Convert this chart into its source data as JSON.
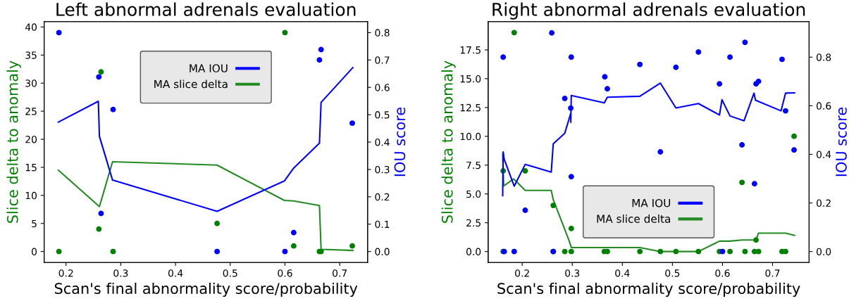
{
  "chart_data": [
    {
      "type": "scatter",
      "title": "Left abnormal adrenals evaluation",
      "xlabel": "Scan's final abnormality score/probability",
      "ylabel": "Slice delta to anomaly",
      "y2label": "IOU score",
      "xlim": [
        0.16,
        0.751
      ],
      "xticks": [
        0.2,
        0.3,
        0.4,
        0.5,
        0.6,
        0.7
      ],
      "ylim": [
        -1.95,
        40.95
      ],
      "yticks": [
        0,
        5,
        10,
        15,
        20,
        25,
        30,
        35,
        40
      ],
      "y2lim": [
        -0.04,
        0.84
      ],
      "y2ticks": [
        {
          "value": 0,
          "label": "0.0"
        },
        0.1,
        0.2,
        0.3,
        0.4,
        0.5,
        0.6,
        0.7,
        0.8
      ],
      "legend": "top",
      "grid": false,
      "series": [
        {
          "marker": "circle",
          "axis": "y2",
          "color": "#0000ff",
          "x": [
            0.187,
            0.26,
            0.264,
            0.286,
            0.476,
            0.6,
            0.616,
            0.663,
            0.666,
            0.723
          ],
          "values": [
            0.8,
            0.638,
            0.139,
            0.519,
            0,
            0,
            0.069,
            0.7,
            0.738,
            0.469
          ]
        },
        {
          "marker": "circle",
          "axis": "y",
          "color": "#008000",
          "x": [
            0.187,
            0.26,
            0.264,
            0.286,
            0.476,
            0.6,
            0.616,
            0.663,
            0.666,
            0.723
          ],
          "values": [
            0,
            4,
            32,
            0,
            5,
            39,
            1,
            0,
            0,
            1
          ]
        },
        {
          "type": "line",
          "name": "MA IOU",
          "axis": "y2",
          "color": "#0000ff",
          "x": [
            0.186,
            0.259,
            0.261,
            0.285,
            0.476,
            0.599,
            0.616,
            0.663,
            0.666,
            0.724
          ],
          "values": [
            0.473,
            0.549,
            0.421,
            0.261,
            0.147,
            0.258,
            0.305,
            0.396,
            0.545,
            0.672
          ]
        },
        {
          "type": "line",
          "name": "MA slice delta",
          "axis": "y",
          "color": "#228b22",
          "x": [
            0.186,
            0.261,
            0.285,
            0.476,
            0.599,
            0.616,
            0.663,
            0.666,
            0.724
          ],
          "values": [
            14.5,
            8.0,
            16.0,
            15.4,
            9.1,
            9.0,
            8.2,
            0.4,
            0.2
          ]
        }
      ]
    },
    {
      "type": "scatter",
      "title": "Right abnormal adrenals evaluation",
      "xlabel": "Scan's final abnormality score/probability",
      "ylabel": "Slice delta to anomaly",
      "y2label": "IOU score",
      "xlim": [
        0.132,
        0.773
      ],
      "xticks": [
        0.2,
        0.3,
        0.4,
        0.5,
        0.6,
        0.7
      ],
      "ylim": [
        -0.95,
        19.95
      ],
      "yticks": [
        {
          "value": 0,
          "label": "0.0"
        },
        2.5,
        {
          "value": 5,
          "label": "5.0"
        },
        7.5,
        {
          "value": 10,
          "label": "10.0"
        },
        12.5,
        {
          "value": 15,
          "label": "15.0"
        },
        17.5
      ],
      "y2lim": [
        -0.045,
        0.946
      ],
      "y2ticks": [
        {
          "value": 0,
          "label": "0.0"
        },
        0.2,
        0.4,
        0.6,
        0.8
      ],
      "legend": "bottom",
      "grid": false,
      "series": [
        {
          "marker": "circle",
          "axis": "y2",
          "color": "#0000ff",
          "x": [
            0.162,
            0.164,
            0.184,
            0.206,
            0.259,
            0.262,
            0.285,
            0.298,
            0.297,
            0.298,
            0.365,
            0.37,
            0.435,
            0.476,
            0.507,
            0.552,
            0.594,
            0.6,
            0.615,
            0.639,
            0.645,
            0.664,
            0.667,
            0.672,
            0.719,
            0.726,
            0.743
          ],
          "values": [
            0.8,
            0,
            0,
            0.17,
            0.9,
            0,
            0.63,
            0.8,
            0.59,
            0.308,
            0.719,
            0.67,
            0.77,
            0.41,
            0.758,
            0.821,
            0.69,
            0,
            0.8,
            0.439,
            0.861,
            0.279,
            0.69,
            0.7,
            0.791,
            0.579,
            0.418
          ]
        },
        {
          "marker": "circle",
          "axis": "y",
          "color": "#008000",
          "x": [
            0.162,
            0.206,
            0.184,
            0.262,
            0.298,
            0.639,
            0.667,
            0.743,
            0.162,
            0.262,
            0.285,
            0.298,
            0.364,
            0.37,
            0.435,
            0.476,
            0.507,
            0.552,
            0.594,
            0.615,
            0.645,
            0.664,
            0.672,
            0.719,
            0.726
          ],
          "values": [
            7,
            7,
            19,
            4,
            2,
            6,
            1,
            10,
            0,
            0,
            0,
            0,
            0,
            0,
            0,
            0,
            0,
            0,
            0,
            0,
            0,
            0,
            0,
            0,
            0
          ]
        },
        {
          "type": "line",
          "name": "MA IOU",
          "axis": "y2",
          "color": "#0000ff",
          "x": [
            0.161,
            0.162,
            0.164,
            0.184,
            0.206,
            0.258,
            0.262,
            0.285,
            0.297,
            0.297,
            0.298,
            0.364,
            0.37,
            0.435,
            0.476,
            0.507,
            0.552,
            0.594,
            0.599,
            0.615,
            0.643,
            0.663,
            0.666,
            0.717,
            0.726,
            0.744
          ],
          "values": [
            0.23,
            0.41,
            0.38,
            0.269,
            0.359,
            0.327,
            0.443,
            0.487,
            0.569,
            0.532,
            0.642,
            0.612,
            0.635,
            0.639,
            0.693,
            0.591,
            0.609,
            0.562,
            0.625,
            0.558,
            0.538,
            0.652,
            0.623,
            0.579,
            0.652,
            0.653
          ]
        },
        {
          "type": "line",
          "name": "MA slice delta",
          "axis": "y",
          "color": "#228b22",
          "x": [
            0.161,
            0.163,
            0.183,
            0.206,
            0.258,
            0.262,
            0.294,
            0.298,
            0.435,
            0.476,
            0.552,
            0.594,
            0.615,
            0.639,
            0.667,
            0.672,
            0.726,
            0.744
          ],
          "values": [
            8.5,
            5.7,
            6.3,
            5.3,
            5.3,
            4.5,
            0.9,
            0.35,
            0.35,
            0,
            0,
            0.9,
            0.9,
            1.0,
            1.0,
            1.6,
            1.6,
            1.4
          ]
        }
      ]
    }
  ]
}
